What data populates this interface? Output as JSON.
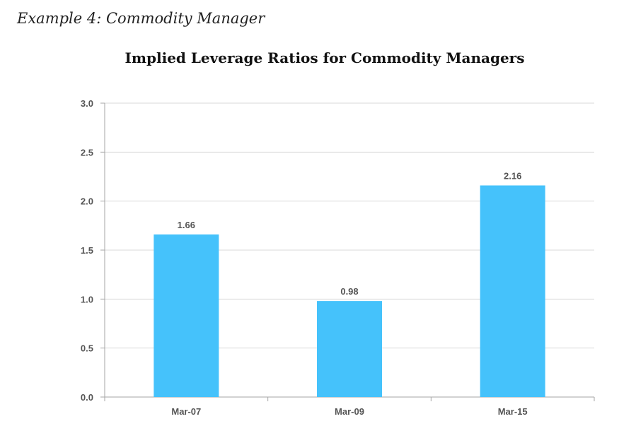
{
  "caption": "Example 4: Commodity Manager",
  "colors": {
    "bar": "#45C2FB",
    "grid": "#D9D9D9",
    "axis": "#A6A6A6",
    "text": "#555555"
  },
  "chart_data": {
    "type": "bar",
    "title": "Implied Leverage Ratios for Commodity Managers",
    "xlabel": "",
    "ylabel": "",
    "categories": [
      "Mar-07",
      "Mar-09",
      "Mar-15"
    ],
    "values": [
      1.66,
      0.98,
      2.16
    ],
    "data_labels": [
      "1.66",
      "0.98",
      "2.16"
    ],
    "ylim": [
      0,
      3.0
    ],
    "yticks": [
      "0.0",
      "0.5",
      "1.0",
      "1.5",
      "2.0",
      "2.5",
      "3.0"
    ],
    "grid": true,
    "legend": "none"
  }
}
